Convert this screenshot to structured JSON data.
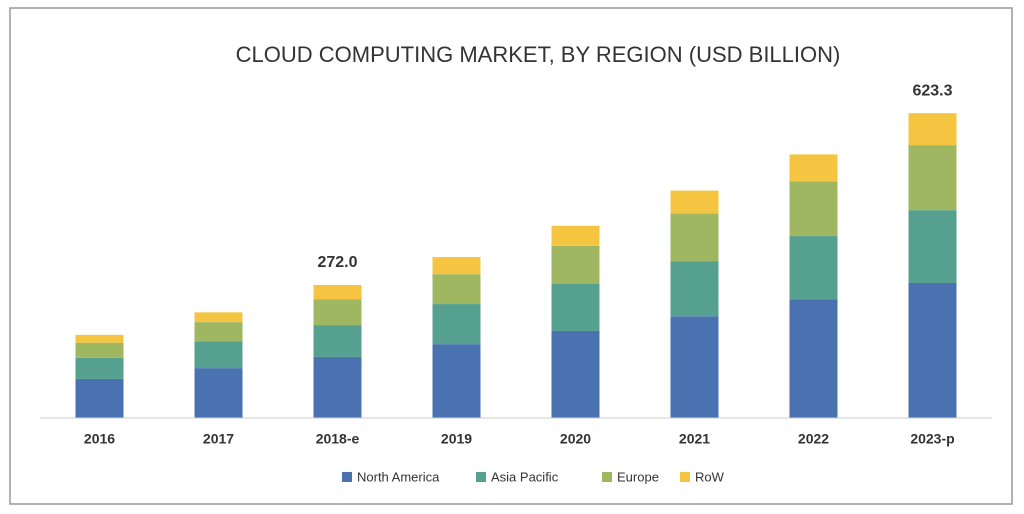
{
  "chart_data": {
    "type": "stacked_bar",
    "title": "CLOUD COMPUTING MARKET, BY REGION (USD BILLION)",
    "categories": [
      "2016",
      "2017",
      "2018-e",
      "2019",
      "2020",
      "2021",
      "2022",
      "2023-p"
    ],
    "series": [
      {
        "name": "North America",
        "color": "#4a72b0",
        "values": [
          80,
          102,
          125,
          151,
          178,
          208,
          243,
          276
        ]
      },
      {
        "name": "Asia Pacific",
        "color": "#55a08f",
        "values": [
          43,
          55,
          65,
          82,
          96,
          112,
          129,
          149
        ]
      },
      {
        "name": "Europe",
        "color": "#9fb760",
        "values": [
          31,
          39,
          53,
          61,
          78,
          98,
          112,
          133
        ]
      },
      {
        "name": "RoW",
        "color": "#f5c542",
        "values": [
          16,
          20,
          29,
          35,
          41,
          47,
          55,
          65.3
        ]
      }
    ],
    "total_labels": [
      null,
      null,
      "272.0",
      null,
      null,
      null,
      null,
      "623.3"
    ],
    "ylim": [
      0,
      640
    ],
    "legend": "bottom"
  }
}
